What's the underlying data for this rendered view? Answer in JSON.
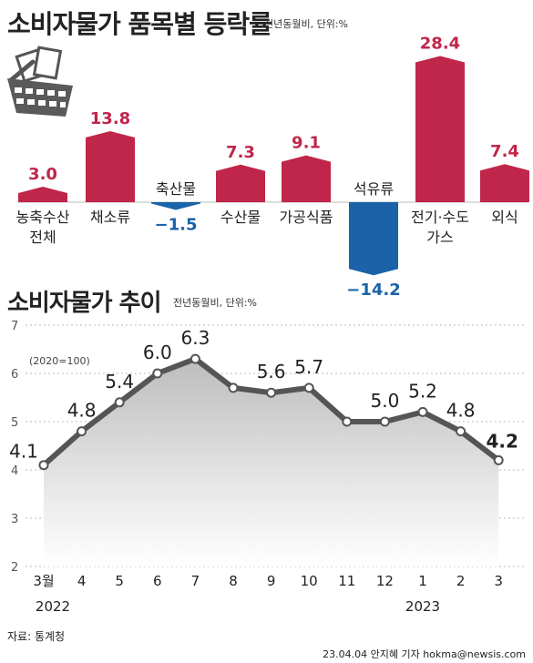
{
  "header": {
    "title": "소비자물가 품목별 등락률",
    "unit": "전년동월비, 단위:%"
  },
  "section2": {
    "title": "소비자물가 추이",
    "unit": "전년동월비, 단위:%",
    "base_note": "(2020=100)"
  },
  "footer": {
    "source": "자료: 통계청",
    "credit": "23.04.04 안지혜 기자 hokma@newsis.com"
  },
  "colors": {
    "positive": "#c0264a",
    "negative": "#1a63a8",
    "line": "#555555",
    "text_dark": "#222222"
  },
  "icon": "shopping-basket-icon",
  "chart_data": [
    {
      "type": "bar",
      "title": "소비자물가 품목별 등락률",
      "categories": [
        "농축수산\n전체",
        "채소류",
        "축산물",
        "수산물",
        "가공식품",
        "석유류",
        "전기·수도\n가스",
        "외식"
      ],
      "values": [
        3.0,
        13.8,
        -1.5,
        7.3,
        9.1,
        -14.2,
        28.4,
        7.4
      ],
      "value_labels": [
        "3.0",
        "13.8",
        "−1.5",
        "7.3",
        "9.1",
        "−14.2",
        "28.4",
        "7.4"
      ]
    },
    {
      "type": "line",
      "title": "소비자물가 추이",
      "x": [
        "3월",
        "4",
        "5",
        "6",
        "7",
        "8",
        "9",
        "10",
        "11",
        "12",
        "1",
        "2",
        "3"
      ],
      "year_labels": [
        {
          "index": 0,
          "text": "2022"
        },
        {
          "index": 10,
          "text": "2023"
        }
      ],
      "values": [
        4.1,
        4.8,
        5.4,
        6.0,
        6.3,
        5.7,
        5.6,
        5.7,
        5.0,
        5.0,
        5.2,
        4.8,
        4.2
      ],
      "point_labels": [
        "4.1",
        "4.8",
        "5.4",
        "6.0",
        "6.3",
        "",
        "5.6",
        "5.7",
        "",
        "5.0",
        "5.2",
        "4.8",
        "4.2"
      ],
      "ylim": [
        2,
        7
      ],
      "yticks": [
        "2",
        "3",
        "4",
        "5",
        "6",
        "7"
      ],
      "grid": true
    }
  ]
}
